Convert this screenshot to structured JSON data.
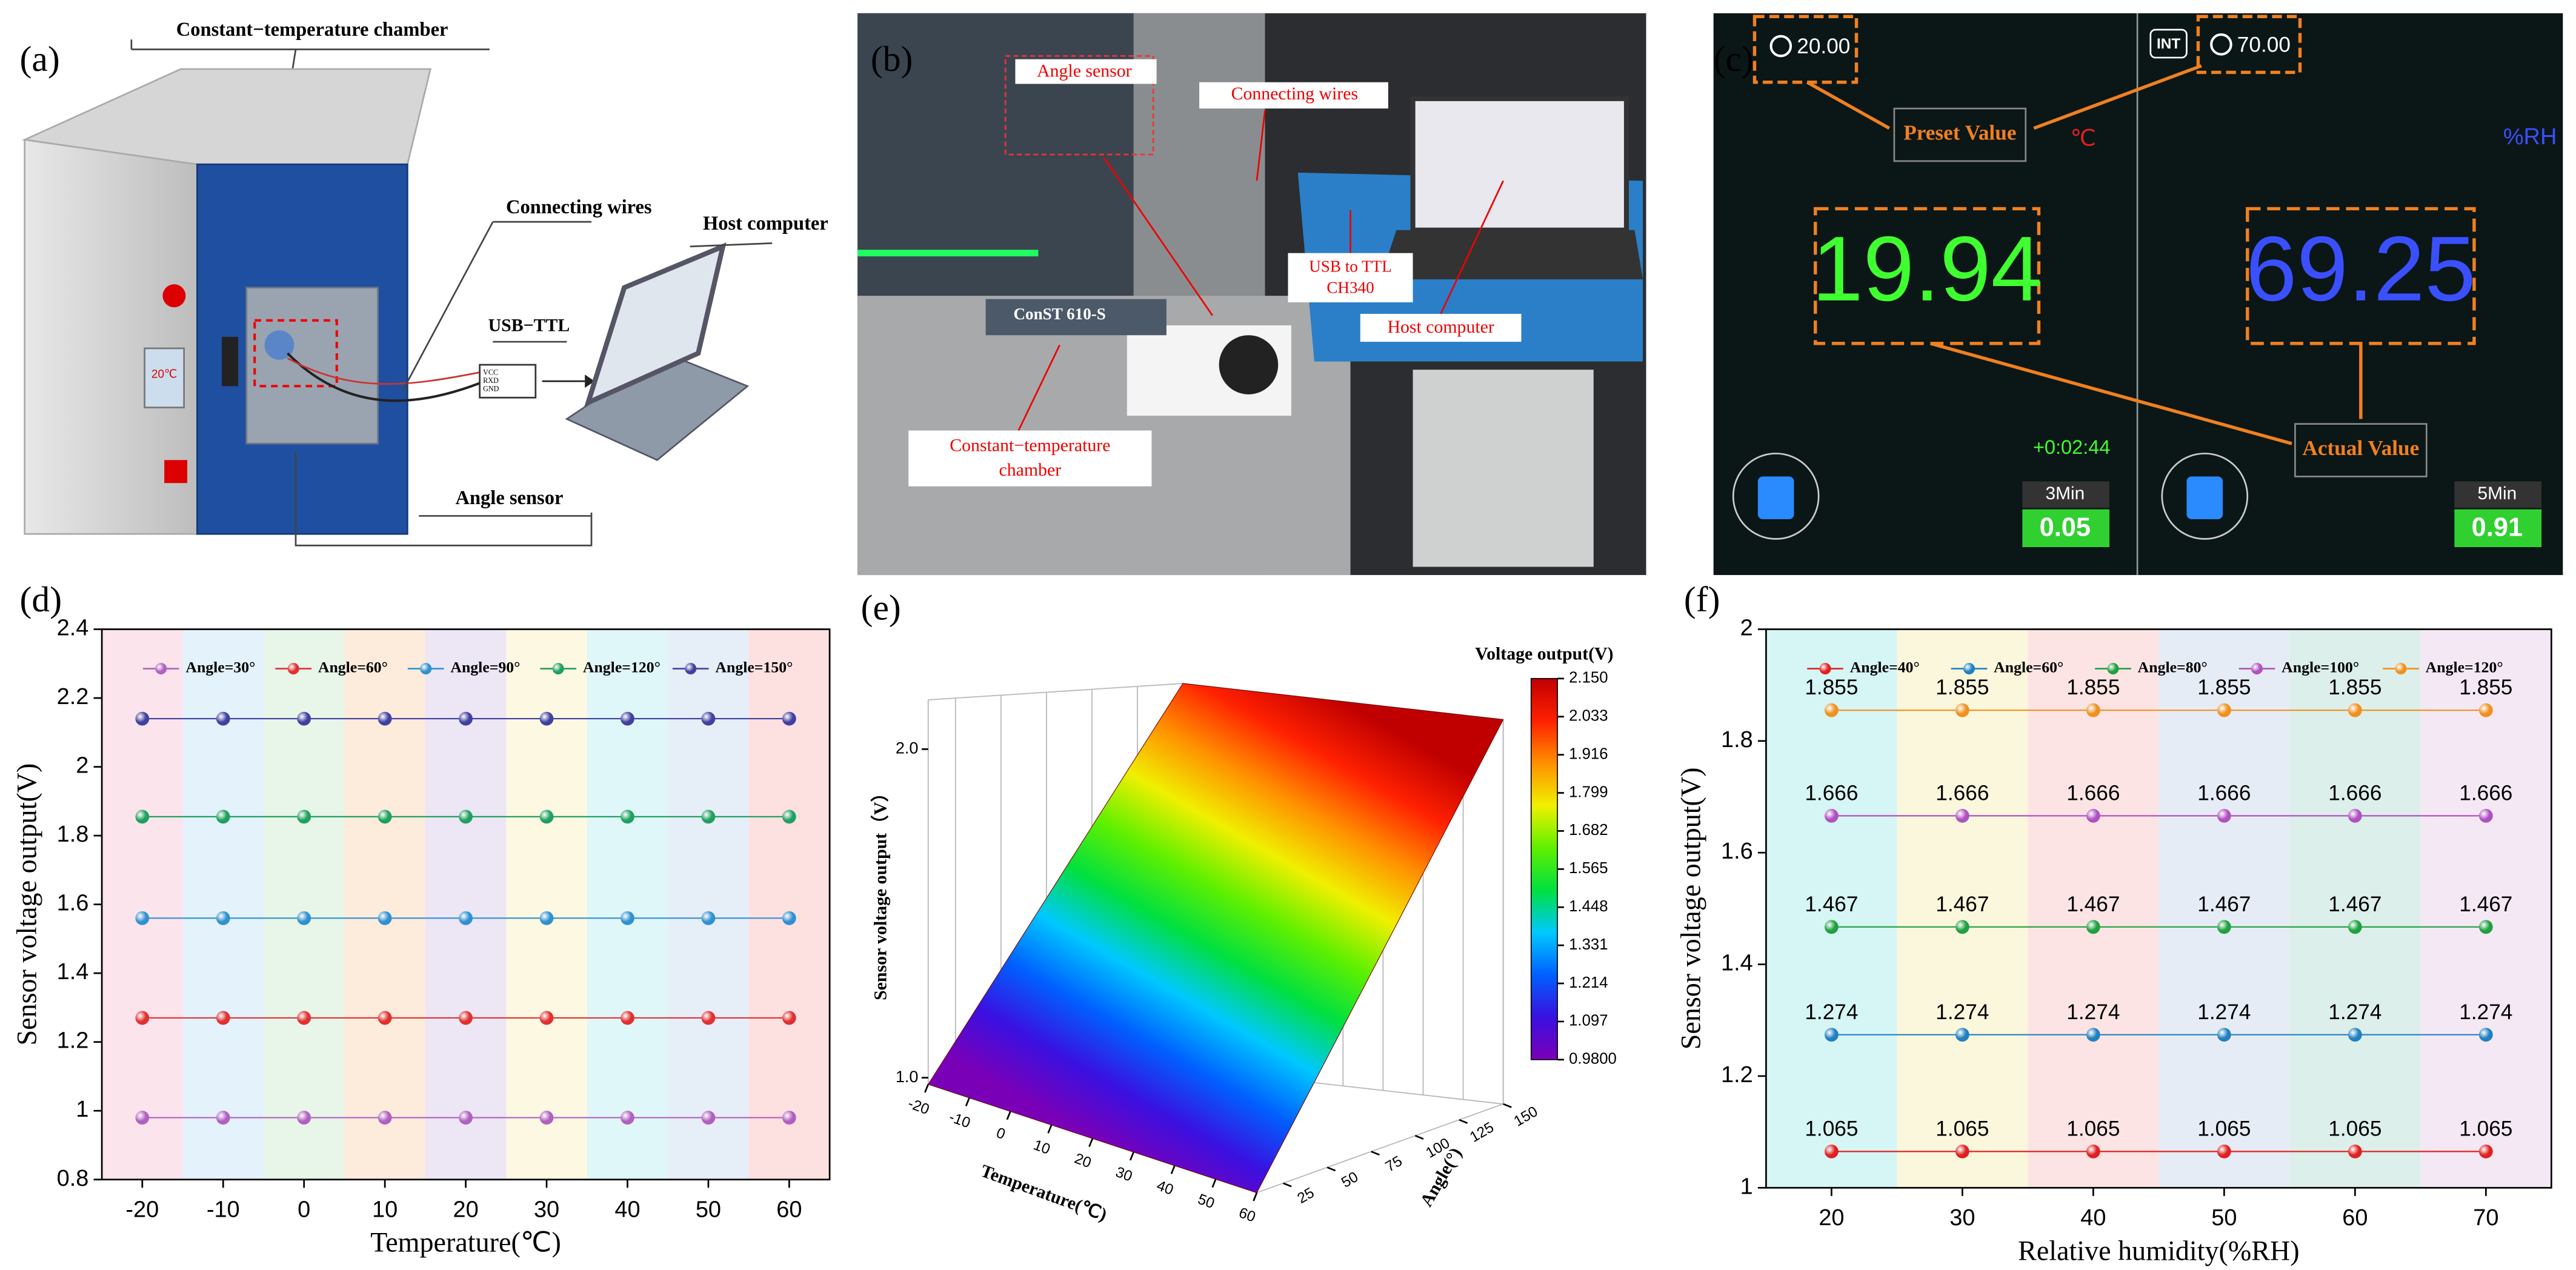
{
  "panels": [
    {
      "label": "(a)",
      "texts": [
        "Constant−temperature chamber",
        "Connecting wires",
        "USB−TTL",
        "Host computer",
        "Angle sensor",
        "20℃",
        "VCC",
        "RXD",
        "GND"
      ]
    },
    {
      "label": "(b)",
      "texts": [
        "Angle sensor",
        "Connecting wires",
        "USB to TTL",
        "CH340",
        "Host computer",
        "Constant−temperature",
        "chamber",
        "ConST 610-S"
      ]
    },
    {
      "label": "(c)",
      "texts": [
        "20.00",
        "INT",
        "70.00",
        "Preset Value",
        "℃",
        "%RH",
        "19.94",
        "69.25",
        "+0:02:44",
        "Actual Value",
        "3Min",
        "0.05",
        "5Min",
        "0.91"
      ]
    }
  ],
  "chart_data": [
    {
      "type": "line",
      "label": "(d)",
      "ylabel": "Sensor voltage output(V)",
      "xlabel": "Temperature(℃)",
      "x": [
        -20,
        -10,
        0,
        10,
        20,
        30,
        40,
        50,
        60
      ],
      "xlim": [
        -25,
        65
      ],
      "xticks": [
        -20,
        -10,
        0,
        10,
        20,
        30,
        40,
        50,
        60
      ],
      "ylim": [
        0.8,
        2.4
      ],
      "yticks": [
        0.8,
        1.0,
        1.2,
        1.4,
        1.6,
        1.8,
        2.0,
        2.2,
        2.4
      ],
      "legend": "top",
      "data_labels": false,
      "band_colors": [
        "#fce4ec",
        "#e3f2fb",
        "#e8f5e9",
        "#fdebdc",
        "#ece6f5",
        "#fdf8e1",
        "#e0f7fa",
        "#e6eef8",
        "#fde0e0"
      ],
      "series": [
        {
          "name": "Angle=30°",
          "color": "#b060c0",
          "values": [
            0.98,
            0.98,
            0.98,
            0.98,
            0.98,
            0.98,
            0.98,
            0.98,
            0.98
          ]
        },
        {
          "name": "Angle=60°",
          "color": "#e03030",
          "values": [
            1.27,
            1.27,
            1.27,
            1.27,
            1.27,
            1.27,
            1.27,
            1.27,
            1.27
          ]
        },
        {
          "name": "Angle=90°",
          "color": "#3090d0",
          "values": [
            1.56,
            1.56,
            1.56,
            1.56,
            1.56,
            1.56,
            1.56,
            1.56,
            1.56
          ]
        },
        {
          "name": "Angle=120°",
          "color": "#20a060",
          "values": [
            1.855,
            1.855,
            1.855,
            1.855,
            1.855,
            1.855,
            1.855,
            1.855,
            1.855
          ]
        },
        {
          "name": "Angle=150°",
          "color": "#4040a0",
          "values": [
            2.14,
            2.14,
            2.14,
            2.14,
            2.14,
            2.14,
            2.14,
            2.14,
            2.14
          ]
        }
      ]
    },
    {
      "type": "surface",
      "label": "(e)",
      "colorbar_title": "Voltage output(V)",
      "zlabel": "Sensor voltage output（V）",
      "xlabel": "Temperature(℃)",
      "ylabel": "Angle(°)",
      "xlim": [
        -20,
        60
      ],
      "xticks": [
        -20,
        -10,
        0,
        10,
        20,
        30,
        40,
        50,
        60
      ],
      "ylim": [
        10,
        150
      ],
      "yticks": [
        25,
        50,
        75,
        100,
        125,
        150
      ],
      "zlim": [
        0.98,
        2.15
      ],
      "zticks": [
        {
          "value": 1.0,
          "label": "1.0"
        },
        {
          "value": 2.0,
          "label": "2.0"
        }
      ],
      "values": [
        0.98,
        2.15
      ],
      "clim": [
        0.98,
        2.15
      ],
      "colorbar_ticks": [
        {
          "value": 2.15,
          "label": "2.150"
        },
        2.033,
        1.916,
        1.799,
        1.682,
        1.565,
        1.448,
        1.331,
        1.214,
        1.097,
        {
          "value": 0.98,
          "label": "0.9800"
        }
      ],
      "colormap": [
        "#7a00b8",
        "#3a10e0",
        "#0060ff",
        "#00c8ff",
        "#00e040",
        "#60f000",
        "#f0f000",
        "#ff9000",
        "#ff2000",
        "#c00000"
      ]
    },
    {
      "type": "line",
      "label": "(f)",
      "ylabel": "Sensor voltage output(V)",
      "xlabel": "Relative humidity(%RH)",
      "x": [
        20,
        30,
        40,
        50,
        60,
        70
      ],
      "xlim": [
        15,
        75
      ],
      "xticks": [
        20,
        30,
        40,
        50,
        60,
        70
      ],
      "ylim": [
        1.0,
        2.0
      ],
      "yticks": [
        1.0,
        1.2,
        1.4,
        1.6,
        1.8,
        2.0
      ],
      "legend": "top",
      "data_labels": true,
      "band_colors": [
        "#d6f5f5",
        "#fbf7dc",
        "#fce4e4",
        "#e6ecf5",
        "#dcefea",
        "#f5e8f5"
      ],
      "series": [
        {
          "name": "Angle=40°",
          "color": "#e02020",
          "values": [
            1.065,
            1.065,
            1.065,
            1.065,
            1.065,
            1.065
          ]
        },
        {
          "name": "Angle=60°",
          "color": "#2080c0",
          "values": [
            1.274,
            1.274,
            1.274,
            1.274,
            1.274,
            1.274
          ]
        },
        {
          "name": "Angle=80°",
          "color": "#20a040",
          "values": [
            1.467,
            1.467,
            1.467,
            1.467,
            1.467,
            1.467
          ]
        },
        {
          "name": "Angle=100°",
          "color": "#b050c0",
          "values": [
            1.666,
            1.666,
            1.666,
            1.666,
            1.666,
            1.666
          ]
        },
        {
          "name": "Angle=120°",
          "color": "#f09020",
          "values": [
            1.855,
            1.855,
            1.855,
            1.855,
            1.855,
            1.855
          ]
        }
      ]
    }
  ]
}
